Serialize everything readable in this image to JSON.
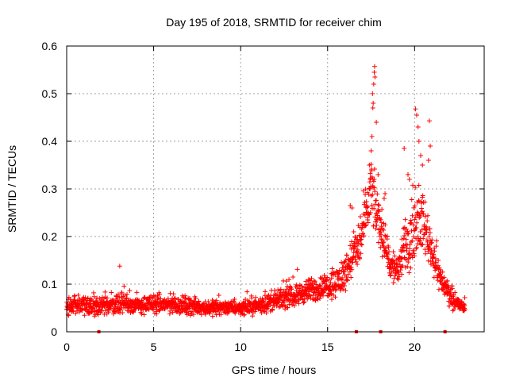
{
  "chart_data": {
    "type": "scatter",
    "title": "Day 195 of 2018, SRMTID for receiver chim",
    "xlabel": "GPS time / hours",
    "ylabel": "SRMTID / TECUs",
    "xlim": [
      0,
      24
    ],
    "ylim": [
      0,
      0.6
    ],
    "xticks": [
      {
        "value": 0,
        "label": "0"
      },
      {
        "value": 5,
        "label": "5"
      },
      {
        "value": 10,
        "label": "10"
      },
      {
        "value": 15,
        "label": "15"
      },
      {
        "value": 20,
        "label": "20"
      }
    ],
    "yticks": [
      {
        "value": 0,
        "label": "0"
      },
      {
        "value": 0.1,
        "label": "0.1"
      },
      {
        "value": 0.2,
        "label": "0.2"
      },
      {
        "value": 0.3,
        "label": "0.3"
      },
      {
        "value": 0.4,
        "label": "0.4"
      },
      {
        "value": 0.5,
        "label": "0.5"
      },
      {
        "value": 0.6,
        "label": "0.6"
      }
    ],
    "grid": true,
    "marker": "+",
    "series_color": "#ff0000",
    "baseline_marks": [
      1.85,
      16.65,
      18.05,
      21.75
    ],
    "envelope": {
      "x": [
        0.0,
        1.0,
        2.0,
        3.0,
        4.0,
        5.0,
        6.0,
        7.0,
        8.0,
        9.0,
        10.0,
        11.0,
        12.0,
        13.0,
        13.8,
        14.5,
        15.2,
        15.8,
        16.3,
        16.8,
        17.2,
        17.5,
        17.8,
        18.2,
        18.6,
        19.0,
        19.4,
        19.8,
        20.2,
        20.6,
        21.0,
        21.4,
        21.8,
        22.2,
        22.6,
        22.9
      ],
      "mean": [
        0.055,
        0.058,
        0.052,
        0.06,
        0.055,
        0.058,
        0.057,
        0.055,
        0.05,
        0.052,
        0.05,
        0.055,
        0.065,
        0.075,
        0.085,
        0.09,
        0.1,
        0.11,
        0.15,
        0.18,
        0.24,
        0.3,
        0.25,
        0.2,
        0.14,
        0.13,
        0.17,
        0.2,
        0.24,
        0.22,
        0.17,
        0.12,
        0.09,
        0.07,
        0.055,
        0.05
      ],
      "spread": [
        0.025,
        0.028,
        0.025,
        0.03,
        0.025,
        0.028,
        0.028,
        0.026,
        0.022,
        0.022,
        0.02,
        0.024,
        0.028,
        0.03,
        0.035,
        0.035,
        0.04,
        0.05,
        0.06,
        0.07,
        0.09,
        0.1,
        0.08,
        0.06,
        0.05,
        0.06,
        0.08,
        0.09,
        0.09,
        0.08,
        0.06,
        0.045,
        0.035,
        0.03,
        0.02,
        0.015
      ]
    },
    "extreme_points": [
      {
        "x": 3.05,
        "y": 0.138
      },
      {
        "x": 17.45,
        "y": 0.32
      },
      {
        "x": 17.55,
        "y": 0.41
      },
      {
        "x": 17.6,
        "y": 0.47
      },
      {
        "x": 17.65,
        "y": 0.52
      },
      {
        "x": 17.7,
        "y": 0.557
      },
      {
        "x": 17.68,
        "y": 0.545
      },
      {
        "x": 17.72,
        "y": 0.535
      },
      {
        "x": 17.58,
        "y": 0.5
      },
      {
        "x": 17.62,
        "y": 0.48
      },
      {
        "x": 17.5,
        "y": 0.38
      },
      {
        "x": 17.4,
        "y": 0.35
      },
      {
        "x": 17.8,
        "y": 0.44
      },
      {
        "x": 19.4,
        "y": 0.385
      },
      {
        "x": 20.05,
        "y": 0.468
      },
      {
        "x": 20.12,
        "y": 0.455
      },
      {
        "x": 20.2,
        "y": 0.43
      },
      {
        "x": 20.25,
        "y": 0.4
      },
      {
        "x": 20.35,
        "y": 0.37
      },
      {
        "x": 20.45,
        "y": 0.35
      },
      {
        "x": 20.85,
        "y": 0.443
      },
      {
        "x": 20.9,
        "y": 0.39
      },
      {
        "x": 20.8,
        "y": 0.36
      },
      {
        "x": 16.3,
        "y": 0.265
      },
      {
        "x": 16.5,
        "y": 0.21
      },
      {
        "x": 16.4,
        "y": 0.26
      },
      {
        "x": 18.3,
        "y": 0.29
      },
      {
        "x": 18.25,
        "y": 0.28
      },
      {
        "x": 19.7,
        "y": 0.32
      },
      {
        "x": 17.9,
        "y": 0.33
      }
    ]
  }
}
